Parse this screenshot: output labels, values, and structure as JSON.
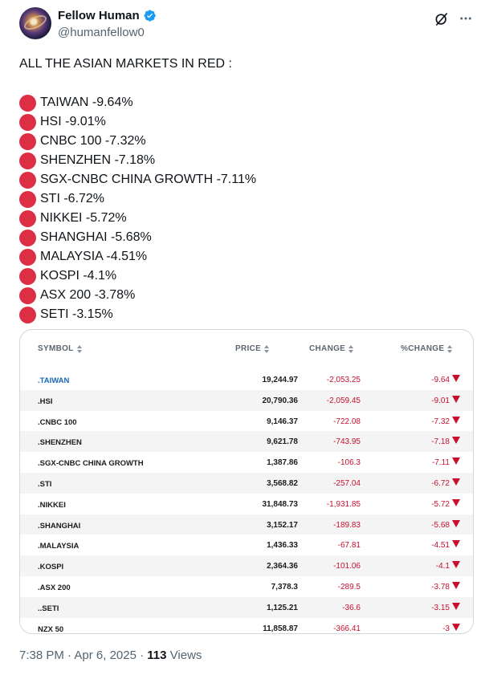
{
  "author": {
    "display_name": "Fellow Human",
    "handle": "@humanfellow0",
    "verified_icon": "verified-badge-icon",
    "verified_color": "#1d9bf0"
  },
  "actions": {
    "grok_icon": "grok-icon",
    "more_icon": "more-options-icon"
  },
  "post": {
    "heading": "ALL THE ASIAN MARKETS IN RED :",
    "bullet_icon": "red-circle-icon",
    "bullet_color": "#dd2e44",
    "lines": [
      "TAIWAN -9.64%",
      "HSI -9.01%",
      "CNBC 100 -7.32%",
      "SHENZHEN -7.18%",
      "SGX-CNBC CHINA GROWTH -7.11%",
      "STI -6.72%",
      "NIKKEI -5.72%",
      "SHANGHAI -5.68%",
      "MALAYSIA -4.51%",
      "KOSPI -4.1%",
      "ASX 200 -3.78%",
      "SETI -3.15%"
    ]
  },
  "table": {
    "headers": {
      "symbol": "SYMBOL",
      "price": "PRICE",
      "change": "CHANGE",
      "pct_change": "%CHANGE"
    },
    "negative_color": "#c8102e",
    "link_color": "#1a67b5",
    "rows": [
      {
        "symbol": ".TAIWAN",
        "price": "19,244.97",
        "change": "-2,053.25",
        "pct": "-9.64",
        "link": true
      },
      {
        "symbol": ".HSI",
        "price": "20,790.36",
        "change": "-2,059.45",
        "pct": "-9.01",
        "link": false
      },
      {
        "symbol": ".CNBC 100",
        "price": "9,146.37",
        "change": "-722.08",
        "pct": "-7.32",
        "link": false
      },
      {
        "symbol": ".SHENZHEN",
        "price": "9,621.78",
        "change": "-743.95",
        "pct": "-7.18",
        "link": false
      },
      {
        "symbol": ".SGX-CNBC CHINA GROWTH",
        "price": "1,387.86",
        "change": "-106.3",
        "pct": "-7.11",
        "link": false
      },
      {
        "symbol": ".STI",
        "price": "3,568.82",
        "change": "-257.04",
        "pct": "-6.72",
        "link": false
      },
      {
        "symbol": ".NIKKEI",
        "price": "31,848.73",
        "change": "-1,931.85",
        "pct": "-5.72",
        "link": false
      },
      {
        "symbol": ".SHANGHAI",
        "price": "3,152.17",
        "change": "-189.83",
        "pct": "-5.68",
        "link": false
      },
      {
        "symbol": ".MALAYSIA",
        "price": "1,436.33",
        "change": "-67.81",
        "pct": "-4.51",
        "link": false
      },
      {
        "symbol": ".KOSPI",
        "price": "2,364.36",
        "change": "-101.06",
        "pct": "-4.1",
        "link": false
      },
      {
        "symbol": ".ASX 200",
        "price": "7,378.3",
        "change": "-289.5",
        "pct": "-3.78",
        "link": false
      },
      {
        "symbol": "..SETI",
        "price": "1,125.21",
        "change": "-36.6",
        "pct": "-3.15",
        "link": false
      },
      {
        "symbol": "NZX 50",
        "price": "11,858.87",
        "change": "-366.41",
        "pct": "-3",
        "link": false
      }
    ]
  },
  "meta": {
    "time": "7:38 PM",
    "separator": "·",
    "date": "Apr 6, 2025",
    "views_count": "113",
    "views_label": "Views"
  }
}
